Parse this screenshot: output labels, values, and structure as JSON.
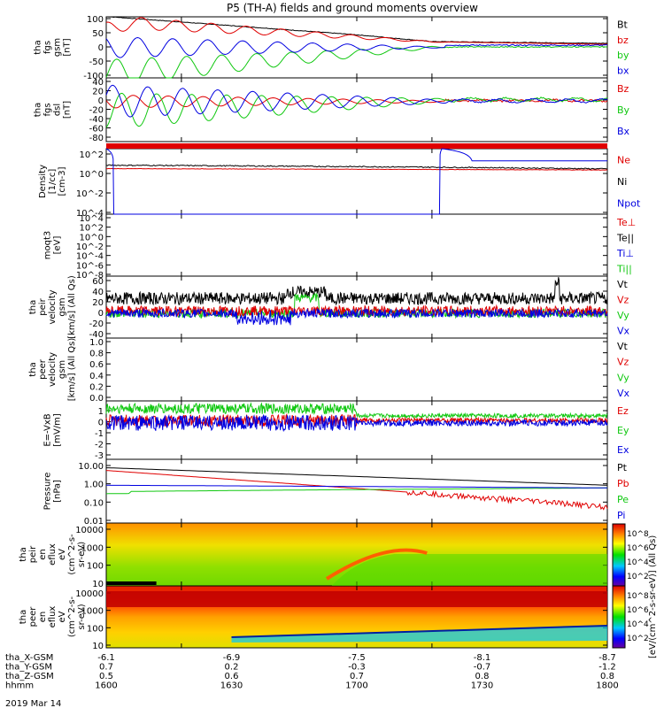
{
  "title": "P5 (TH-A) fields and ground moments overview",
  "date_label": "2019 Mar 14",
  "colors": {
    "black": "#000000",
    "red": "#e00000",
    "green": "#10c810",
    "blue": "#0000e0"
  },
  "panels": [
    {
      "id": "fgs_gsm",
      "ylabel": [
        "tha",
        "fgs",
        "gsm",
        "[nT]"
      ],
      "ticks": [
        "100",
        "50",
        "0",
        "-50",
        "-100"
      ],
      "legend": [
        "Bt",
        "bz",
        "by",
        "bx"
      ],
      "legend_colors": [
        "black",
        "red",
        "green",
        "blue"
      ]
    },
    {
      "id": "fgs_dsl",
      "ylabel": [
        "tha",
        "fgs",
        "dsl",
        "[nT]"
      ],
      "ticks": [
        "40",
        "20",
        "0",
        "-20",
        "-40",
        "-60",
        "-80"
      ],
      "legend": [
        "Bz",
        "By",
        "Bx"
      ],
      "legend_colors": [
        "red",
        "green",
        "blue"
      ]
    },
    {
      "id": "density",
      "ylabel": [
        "Density",
        "[1/cc]",
        "[cm-3]"
      ],
      "ticks": [
        "10^2",
        "10^0",
        "10^-2",
        "10^-4"
      ],
      "legend": [
        "Ne",
        "Ni",
        "Npot"
      ],
      "legend_colors": [
        "red",
        "black",
        "blue"
      ]
    },
    {
      "id": "temp",
      "ylabel": [
        "moqt3",
        "[eV]"
      ],
      "ticks": [
        "10^4",
        "10^2",
        "10^0",
        "10^-2",
        "10^-4",
        "10^-6",
        "10^-8"
      ],
      "legend": [
        "Te⊥",
        "Te||",
        "Ti⊥",
        "Ti||"
      ],
      "legend_colors": [
        "red",
        "black",
        "blue",
        "green"
      ]
    },
    {
      "id": "peir_vel",
      "ylabel": [
        "tha",
        "peir",
        "velocity",
        "gsm",
        "[km/s] (All Qs)"
      ],
      "ticks": [
        "60",
        "40",
        "20",
        "0",
        "-20",
        "-40"
      ],
      "legend": [
        "Vt",
        "Vz",
        "Vy",
        "Vx"
      ],
      "legend_colors": [
        "black",
        "red",
        "green",
        "blue"
      ]
    },
    {
      "id": "peer_vel",
      "ylabel": [
        "tha",
        "peer",
        "velocity",
        "gsm",
        "[km/s] (All Qs)"
      ],
      "ticks": [
        "1.0",
        "0.8",
        "0.6",
        "0.4",
        "0.2",
        "0.0"
      ],
      "legend": [
        "Vt",
        "Vz",
        "Vy",
        "Vx"
      ],
      "legend_colors": [
        "black",
        "red",
        "green",
        "blue"
      ]
    },
    {
      "id": "efield",
      "ylabel": [
        "E=-VxB",
        "[mV/m]"
      ],
      "ticks": [
        "1",
        "0",
        "-1",
        "-2",
        "-3"
      ],
      "legend": [
        "Ez",
        "Ey",
        "Ex"
      ],
      "legend_colors": [
        "red",
        "green",
        "blue"
      ]
    },
    {
      "id": "pressure",
      "ylabel": [
        "Pressure",
        "[nPa]"
      ],
      "ticks": [
        "10.00",
        "1.00",
        "0.10",
        "0.01"
      ],
      "legend": [
        "Pt",
        "Pb",
        "Pe",
        "Pi"
      ],
      "legend_colors": [
        "black",
        "red",
        "green",
        "blue"
      ]
    },
    {
      "id": "peir_en",
      "ylabel": [
        "tha",
        "peir",
        "en",
        "eflux",
        "eV",
        "(cm^2-s-",
        "sr-eV)"
      ],
      "ticks": [
        "10000",
        "1000",
        "100",
        "10"
      ],
      "legend": [],
      "legend_colors": []
    },
    {
      "id": "peer_en",
      "ylabel": [
        "tha",
        "peer",
        "en",
        "eflux",
        "eV",
        "(cm^2-s-",
        "sr-eV)"
      ],
      "ticks": [
        "10000",
        "1000",
        "100",
        "10"
      ],
      "legend": [],
      "legend_colors": []
    }
  ],
  "colorbar": {
    "label": "[eV/(cm^2-s-sr-eV)] (All Qs)",
    "ticks_upper": [
      "10^8",
      "10^6",
      "10^4",
      "10^2"
    ],
    "ticks_lower": [
      "10^8",
      "10^6",
      "10^4",
      "10^2"
    ]
  },
  "x_axis": {
    "row_labels": [
      "tha_X-GSM",
      "tha_Y-GSM",
      "tha_Z-GSM",
      "hhmm"
    ],
    "columns": [
      [
        "-6.1",
        "0.7",
        "0.5",
        "1600"
      ],
      [
        "-6.9",
        "0.2",
        "0.6",
        "1630"
      ],
      [
        "-7.5",
        "-0.3",
        "0.7",
        "1700"
      ],
      [
        "-8.1",
        "-0.7",
        "0.8",
        "1730"
      ],
      [
        "-8.7",
        "-1.2",
        "0.8",
        "1800"
      ]
    ]
  },
  "chart_data": [
    {
      "type": "line",
      "panel": "fgs_gsm",
      "xlabel": "hhmm",
      "x": [
        1600,
        1800
      ],
      "ylim": [
        -100,
        100
      ],
      "series": [
        {
          "name": "Bt",
          "values": [
            {
              "t": 1600,
              "y": 100
            },
            {
              "t": 1700,
              "y": 40
            },
            {
              "t": 1730,
              "y": 18
            },
            {
              "t": 1800,
              "y": 12
            }
          ]
        },
        {
          "name": "bz",
          "values": [
            {
              "t": 1600,
              "y": 60
            },
            {
              "t": 1610,
              "y": 80
            },
            {
              "t": 1730,
              "y": 18
            },
            {
              "t": 1800,
              "y": 10
            }
          ]
        },
        {
          "name": "by",
          "values": [
            {
              "t": 1600,
              "y": -85
            },
            {
              "t": 1700,
              "y": -20
            },
            {
              "t": 1730,
              "y": 0
            },
            {
              "t": 1800,
              "y": 0
            }
          ]
        },
        {
          "name": "bx",
          "values": [
            {
              "t": 1600,
              "y": -40
            },
            {
              "t": 1630,
              "y": 40
            },
            {
              "t": 1730,
              "y": 5
            },
            {
              "t": 1800,
              "y": 5
            }
          ]
        }
      ]
    },
    {
      "type": "line",
      "panel": "fgs_dsl",
      "xlabel": "hhmm",
      "x": [
        1600,
        1800
      ],
      "ylim": [
        -90,
        45
      ],
      "series": [
        {
          "name": "Bz",
          "values": [
            {
              "t": 1600,
              "y": 0
            },
            {
              "t": 1800,
              "y": -5
            }
          ]
        },
        {
          "name": "By",
          "values": [
            {
              "t": 1600,
              "y": -70
            },
            {
              "t": 1730,
              "y": -5
            },
            {
              "t": 1800,
              "y": -2
            }
          ]
        },
        {
          "name": "Bx",
          "values": [
            {
              "t": 1600,
              "y": -35
            },
            {
              "t": 1610,
              "y": 30
            },
            {
              "t": 1730,
              "y": 2
            },
            {
              "t": 1800,
              "y": 0
            }
          ]
        }
      ]
    },
    {
      "type": "line",
      "panel": "density",
      "yscale": "log",
      "ylim": [
        1e-05,
        100.0
      ],
      "series": [
        {
          "name": "Ne",
          "values": [
            {
              "t": 1600,
              "y": 0.7
            },
            {
              "t": 1800,
              "y": 0.5
            }
          ]
        },
        {
          "name": "Ni",
          "values": [
            {
              "t": 1600,
              "y": 1.5
            },
            {
              "t": 1800,
              "y": 0.6
            }
          ]
        },
        {
          "name": "Npot",
          "values": [
            {
              "t": 1600,
              "y": 100
            },
            {
              "t": 1603,
              "y": 1e-05
            },
            {
              "t": 1733,
              "y": 1e-05
            },
            {
              "t": 1734,
              "y": 100
            },
            {
              "t": 1746,
              "y": 5
            },
            {
              "t": 1800,
              "y": 5
            }
          ]
        }
      ]
    },
    {
      "type": "line",
      "panel": "peir_vel",
      "ylim": [
        -40,
        60
      ],
      "series": [
        {
          "name": "Vt",
          "values": [
            {
              "t": 1600,
              "y": 15
            },
            {
              "t": 1800,
              "y": 10
            }
          ]
        },
        {
          "name": "Vz",
          "values": [
            {
              "t": 1600,
              "y": 5
            },
            {
              "t": 1800,
              "y": 5
            }
          ]
        },
        {
          "name": "Vy",
          "values": [
            {
              "t": 1600,
              "y": 0
            },
            {
              "t": 1800,
              "y": 0
            }
          ]
        },
        {
          "name": "Vx",
          "values": [
            {
              "t": 1600,
              "y": 0
            },
            {
              "t": 1800,
              "y": 0
            }
          ]
        }
      ]
    },
    {
      "type": "line",
      "panel": "efield",
      "ylim": [
        -3,
        1.5
      ],
      "series": [
        {
          "name": "Ez",
          "values": [
            {
              "t": 1600,
              "y": 0
            },
            {
              "t": 1800,
              "y": 0
            }
          ]
        },
        {
          "name": "Ey",
          "values": [
            {
              "t": 1600,
              "y": 0.5
            },
            {
              "t": 1800,
              "y": 0.1
            }
          ]
        },
        {
          "name": "Ex",
          "values": [
            {
              "t": 1600,
              "y": 0
            },
            {
              "t": 1800,
              "y": 0
            }
          ]
        }
      ]
    },
    {
      "type": "line",
      "panel": "pressure",
      "yscale": "log",
      "ylim": [
        0.01,
        10
      ],
      "series": [
        {
          "name": "Pt",
          "values": [
            {
              "t": 1600,
              "y": 4
            },
            {
              "t": 1800,
              "y": 0.6
            }
          ]
        },
        {
          "name": "Pb",
          "values": [
            {
              "t": 1600,
              "y": 3
            },
            {
              "t": 1800,
              "y": 0.06
            }
          ]
        },
        {
          "name": "Pe",
          "values": [
            {
              "t": 1600,
              "y": 0.3
            },
            {
              "t": 1800,
              "y": 0.45
            }
          ]
        },
        {
          "name": "Pi",
          "values": [
            {
              "t": 1600,
              "y": 0.6
            },
            {
              "t": 1800,
              "y": 0.45
            }
          ]
        }
      ]
    },
    {
      "type": "heatmap",
      "panel": "peir_en",
      "yscale": "log",
      "ylim": [
        5,
        20000
      ]
    },
    {
      "type": "heatmap",
      "panel": "peer_en",
      "yscale": "log",
      "ylim": [
        5,
        20000
      ]
    }
  ]
}
